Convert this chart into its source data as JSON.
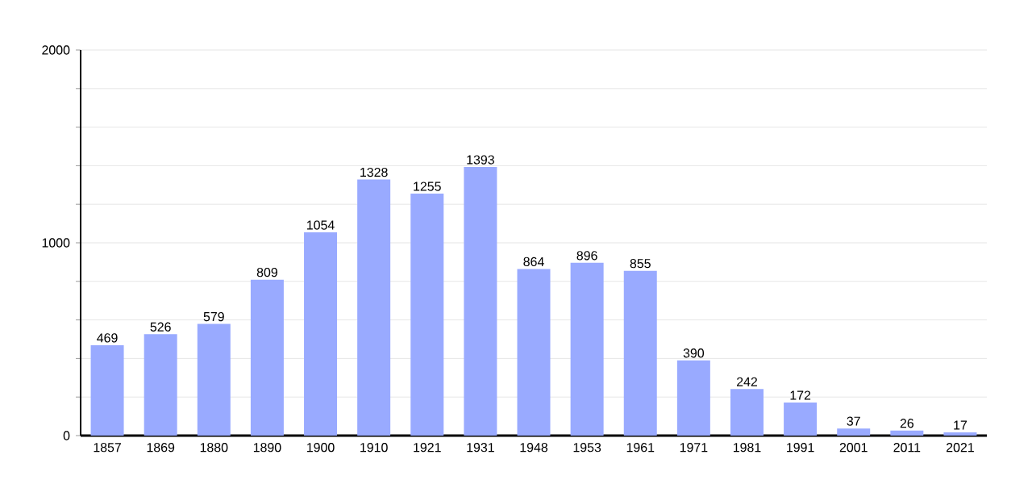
{
  "chart_data": {
    "type": "bar",
    "categories": [
      "1857",
      "1869",
      "1880",
      "1890",
      "1900",
      "1910",
      "1921",
      "1931",
      "1948",
      "1953",
      "1961",
      "1971",
      "1981",
      "1991",
      "2001",
      "2011",
      "2021"
    ],
    "values": [
      469,
      526,
      579,
      809,
      1054,
      1328,
      1255,
      1393,
      864,
      896,
      855,
      390,
      242,
      172,
      37,
      26,
      17
    ],
    "color": "#99aaff",
    "data_labels": true,
    "grid": "y",
    "ylim": [
      0,
      2000
    ],
    "yticks": [
      0,
      {
        "value": 200,
        "label": null
      },
      {
        "value": 400,
        "label": null
      },
      {
        "value": 600,
        "label": null
      },
      {
        "value": 800,
        "label": null
      },
      1000,
      {
        "value": 1200,
        "label": null
      },
      {
        "value": 1400,
        "label": null
      },
      {
        "value": 1600,
        "label": null
      },
      {
        "value": 1800,
        "label": null
      },
      2000
    ]
  }
}
